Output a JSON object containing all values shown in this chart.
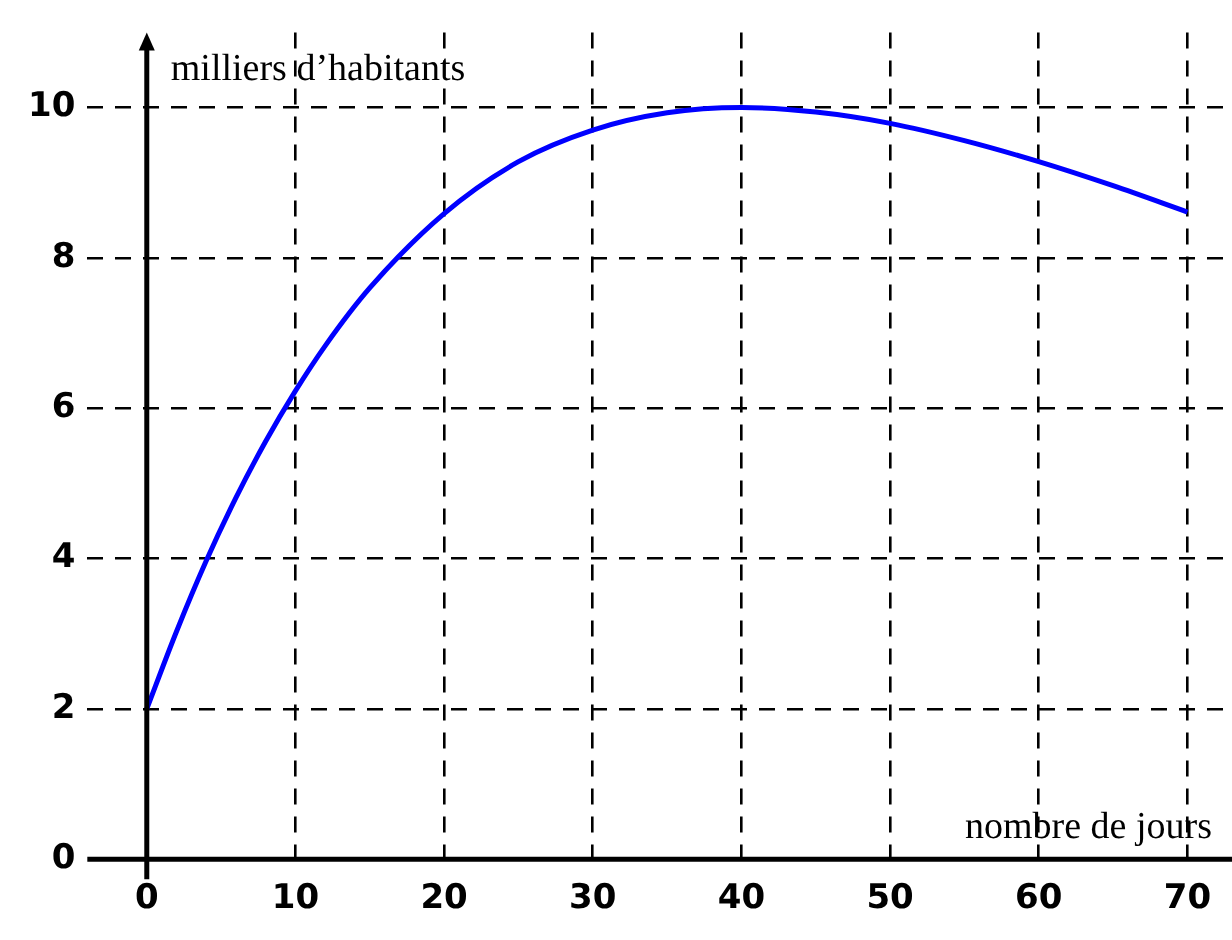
{
  "chart_data": {
    "type": "line",
    "xlabel": "nombre de jours",
    "ylabel": "milliers d’habitants",
    "x": [
      0,
      2,
      4,
      6,
      8,
      10,
      12,
      15,
      20,
      25,
      30,
      35,
      40,
      45,
      50,
      55,
      60,
      65,
      70
    ],
    "series": [
      {
        "color": "#0000ff",
        "values": [
          2,
          3.03,
          3.97,
          4.81,
          5.56,
          6.23,
          6.83,
          7.6,
          8.59,
          9.28,
          9.7,
          9.93,
          10,
          9.94,
          9.79,
          9.56,
          9.28,
          8.96,
          8.61
        ]
      }
    ],
    "xlim": [
      -4,
      73
    ],
    "ylim": [
      0,
      11
    ],
    "xticks": [
      0,
      10,
      20,
      30,
      40,
      50,
      60,
      70
    ],
    "yticks": [
      0,
      2,
      4,
      6,
      8,
      10
    ],
    "grid": true,
    "legend": false,
    "marker": "none",
    "line_style": "solid"
  }
}
